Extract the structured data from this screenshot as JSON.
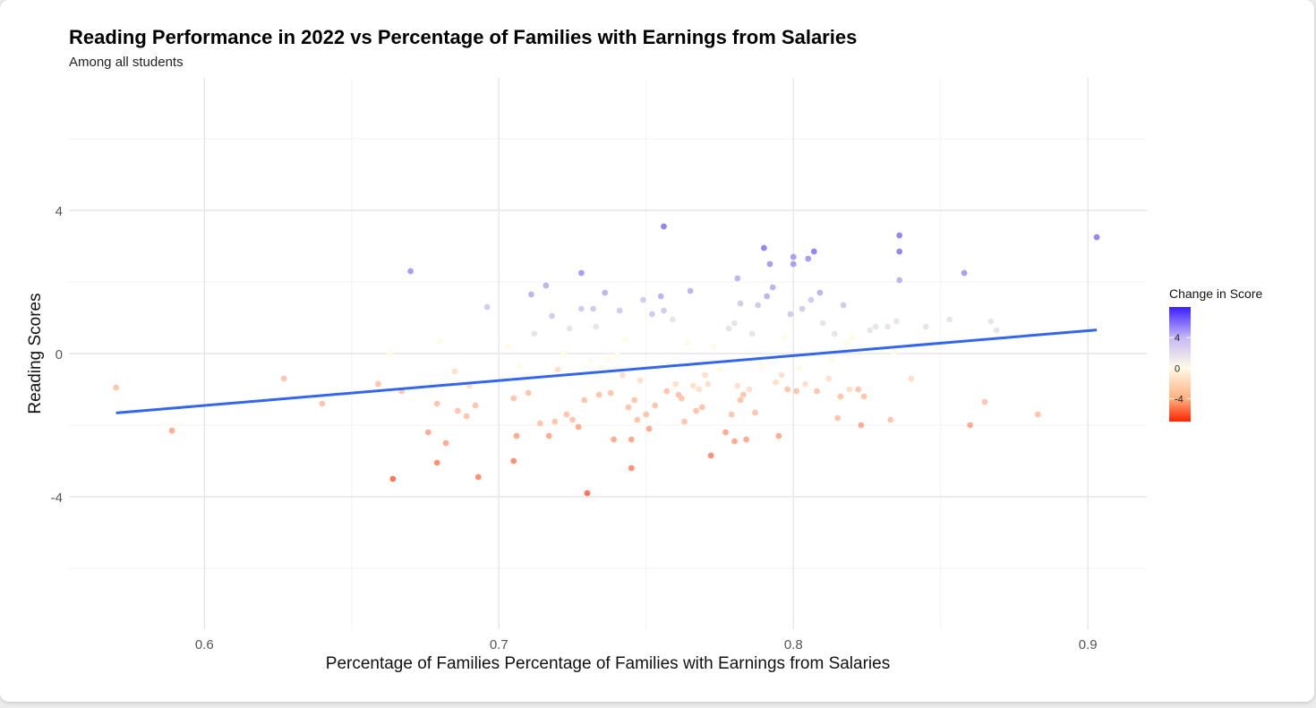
{
  "chart_data": {
    "type": "scatter",
    "title": "Reading Performance in 2022 vs Percentage of Families with Earnings from Salaries",
    "subtitle": "Among all students",
    "xlabel": "Percentage of Families Percentage of Families with Earnings from Salaries",
    "ylabel": "Reading Scores",
    "xlim": [
      0.554,
      0.92
    ],
    "ylim": [
      -7.7,
      7.7
    ],
    "x_ticks": [
      0.6,
      0.7,
      0.8,
      0.9
    ],
    "x_tick_labels": [
      "0.6",
      "0.7",
      "0.8",
      "0.9"
    ],
    "y_ticks": [
      -4,
      0,
      4
    ],
    "y_tick_labels": [
      "-4",
      "0",
      "4"
    ],
    "grid": true,
    "legend": {
      "title": "Change in Score",
      "position": "right",
      "range": [
        -7,
        8
      ],
      "tick_values": [
        4,
        0,
        -4
      ],
      "tick_labels": [
        "4",
        "0",
        "-4"
      ],
      "colors": {
        "low": "#ff2200",
        "mid": "#fffbe6",
        "high": "#3a1fff"
      }
    },
    "trend_line": {
      "x": [
        0.57,
        0.903
      ],
      "y": [
        -1.66,
        0.66
      ],
      "color": "#3366ee"
    },
    "points": [
      [
        0.57,
        -0.95,
        -2
      ],
      [
        0.589,
        -2.15,
        -3
      ],
      [
        0.627,
        -0.7,
        -2
      ],
      [
        0.64,
        -1.4,
        -2
      ],
      [
        0.659,
        -0.85,
        -2
      ],
      [
        0.664,
        -3.5,
        -5
      ],
      [
        0.667,
        -1.05,
        -2
      ],
      [
        0.67,
        2.3,
        4
      ],
      [
        0.663,
        0.0,
        0
      ],
      [
        0.676,
        -2.2,
        -3
      ],
      [
        0.679,
        -3.05,
        -4
      ],
      [
        0.679,
        -1.4,
        -2
      ],
      [
        0.682,
        -2.5,
        -3
      ],
      [
        0.686,
        -1.6,
        -2
      ],
      [
        0.689,
        -1.75,
        -2
      ],
      [
        0.692,
        -1.45,
        -2
      ],
      [
        0.693,
        -3.45,
        -4
      ],
      [
        0.69,
        -0.9,
        -1
      ],
      [
        0.685,
        -0.5,
        -1
      ],
      [
        0.68,
        0.35,
        0
      ],
      [
        0.696,
        1.3,
        2
      ],
      [
        0.703,
        0.2,
        0
      ],
      [
        0.705,
        -1.25,
        -2
      ],
      [
        0.705,
        -3.0,
        -4
      ],
      [
        0.706,
        -2.3,
        -3
      ],
      [
        0.707,
        -0.35,
        0
      ],
      [
        0.71,
        -1.1,
        -2
      ],
      [
        0.711,
        1.65,
        3
      ],
      [
        0.712,
        0.55,
        1
      ],
      [
        0.714,
        -1.95,
        -2
      ],
      [
        0.716,
        1.9,
        3
      ],
      [
        0.717,
        -2.3,
        -3
      ],
      [
        0.718,
        1.05,
        2
      ],
      [
        0.719,
        -1.9,
        -2
      ],
      [
        0.72,
        -0.45,
        -1
      ],
      [
        0.722,
        0.0,
        0
      ],
      [
        0.723,
        -1.7,
        -2
      ],
      [
        0.724,
        0.7,
        1
      ],
      [
        0.725,
        -1.85,
        -2
      ],
      [
        0.727,
        -2.05,
        -3
      ],
      [
        0.728,
        1.25,
        2
      ],
      [
        0.728,
        2.25,
        4
      ],
      [
        0.729,
        -1.3,
        -2
      ],
      [
        0.73,
        -3.9,
        -5
      ],
      [
        0.731,
        -0.2,
        0
      ],
      [
        0.732,
        1.25,
        2
      ],
      [
        0.733,
        0.75,
        1
      ],
      [
        0.734,
        -1.15,
        -2
      ],
      [
        0.735,
        -0.4,
        0
      ],
      [
        0.736,
        1.7,
        3
      ],
      [
        0.737,
        -0.15,
        0
      ],
      [
        0.738,
        -1.1,
        -2
      ],
      [
        0.739,
        -2.4,
        -3
      ],
      [
        0.74,
        -0.05,
        0
      ],
      [
        0.741,
        1.2,
        2
      ],
      [
        0.742,
        -0.6,
        -1
      ],
      [
        0.743,
        0.4,
        0
      ],
      [
        0.744,
        -1.5,
        -2
      ],
      [
        0.745,
        -3.2,
        -4
      ],
      [
        0.745,
        -2.4,
        -3
      ],
      [
        0.746,
        -1.3,
        -2
      ],
      [
        0.747,
        -1.85,
        -2
      ],
      [
        0.748,
        -0.75,
        -1
      ],
      [
        0.749,
        1.5,
        2
      ],
      [
        0.75,
        -1.7,
        -2
      ],
      [
        0.751,
        -2.1,
        -3
      ],
      [
        0.752,
        1.1,
        2
      ],
      [
        0.753,
        -1.45,
        -2
      ],
      [
        0.754,
        -0.4,
        0
      ],
      [
        0.755,
        1.6,
        3
      ],
      [
        0.756,
        3.55,
        5
      ],
      [
        0.756,
        1.2,
        2
      ],
      [
        0.757,
        -1.05,
        -2
      ],
      [
        0.758,
        -0.3,
        0
      ],
      [
        0.759,
        0.95,
        1
      ],
      [
        0.76,
        -0.85,
        -1
      ],
      [
        0.761,
        -1.15,
        -2
      ],
      [
        0.762,
        -1.25,
        -2
      ],
      [
        0.763,
        -1.9,
        -2
      ],
      [
        0.764,
        0.3,
        0
      ],
      [
        0.765,
        1.75,
        3
      ],
      [
        0.766,
        -0.9,
        -1
      ],
      [
        0.767,
        -1.6,
        -2
      ],
      [
        0.768,
        -1.0,
        -1
      ],
      [
        0.769,
        -1.5,
        -2
      ],
      [
        0.77,
        -0.6,
        -1
      ],
      [
        0.771,
        -0.85,
        -1
      ],
      [
        0.772,
        -2.85,
        -4
      ],
      [
        0.773,
        0.2,
        0
      ],
      [
        0.775,
        -0.45,
        0
      ],
      [
        0.777,
        -2.2,
        -3
      ],
      [
        0.778,
        0.7,
        1
      ],
      [
        0.779,
        -1.7,
        -2
      ],
      [
        0.78,
        -2.45,
        -3
      ],
      [
        0.78,
        0.85,
        1
      ],
      [
        0.781,
        2.1,
        3
      ],
      [
        0.781,
        -0.9,
        -1
      ],
      [
        0.782,
        -1.3,
        -2
      ],
      [
        0.782,
        1.4,
        2
      ],
      [
        0.783,
        -1.15,
        -2
      ],
      [
        0.784,
        -2.4,
        -3
      ],
      [
        0.785,
        -1.0,
        -1
      ],
      [
        0.786,
        0.55,
        1
      ],
      [
        0.787,
        -1.65,
        -2
      ],
      [
        0.788,
        1.35,
        2
      ],
      [
        0.789,
        -0.35,
        0
      ],
      [
        0.79,
        2.95,
        5
      ],
      [
        0.791,
        1.6,
        3
      ],
      [
        0.792,
        2.5,
        4
      ],
      [
        0.793,
        1.85,
        3
      ],
      [
        0.794,
        -0.8,
        -1
      ],
      [
        0.795,
        -2.3,
        -3
      ],
      [
        0.796,
        -0.6,
        -1
      ],
      [
        0.797,
        0.45,
        0
      ],
      [
        0.798,
        -1.0,
        -2
      ],
      [
        0.799,
        1.1,
        2
      ],
      [
        0.8,
        2.7,
        4
      ],
      [
        0.8,
        2.5,
        4
      ],
      [
        0.801,
        -1.05,
        -2
      ],
      [
        0.802,
        -0.4,
        0
      ],
      [
        0.803,
        1.25,
        2
      ],
      [
        0.804,
        -0.85,
        -1
      ],
      [
        0.805,
        2.65,
        4
      ],
      [
        0.806,
        1.5,
        2
      ],
      [
        0.807,
        2.85,
        5
      ],
      [
        0.808,
        -1.05,
        -2
      ],
      [
        0.809,
        1.7,
        3
      ],
      [
        0.81,
        0.85,
        1
      ],
      [
        0.812,
        -0.7,
        -1
      ],
      [
        0.813,
        -0.15,
        0
      ],
      [
        0.814,
        0.55,
        1
      ],
      [
        0.815,
        -1.8,
        -2
      ],
      [
        0.816,
        -1.2,
        -2
      ],
      [
        0.817,
        1.35,
        2
      ],
      [
        0.818,
        0.3,
        0
      ],
      [
        0.819,
        -1.0,
        -1
      ],
      [
        0.82,
        0.45,
        0
      ],
      [
        0.822,
        -1.0,
        -2
      ],
      [
        0.823,
        -2.0,
        -3
      ],
      [
        0.824,
        -1.2,
        -2
      ],
      [
        0.825,
        0.1,
        0
      ],
      [
        0.826,
        0.65,
        1
      ],
      [
        0.828,
        0.75,
        1
      ],
      [
        0.83,
        0.1,
        0
      ],
      [
        0.832,
        0.75,
        1
      ],
      [
        0.833,
        -1.85,
        -2
      ],
      [
        0.834,
        0.05,
        0
      ],
      [
        0.835,
        0.9,
        1
      ],
      [
        0.836,
        3.3,
        5
      ],
      [
        0.836,
        2.85,
        5
      ],
      [
        0.836,
        2.05,
        3
      ],
      [
        0.84,
        -0.7,
        -1
      ],
      [
        0.845,
        0.75,
        1
      ],
      [
        0.853,
        0.95,
        1
      ],
      [
        0.858,
        2.25,
        4
      ],
      [
        0.86,
        -2.0,
        -3
      ],
      [
        0.865,
        -1.35,
        -2
      ],
      [
        0.867,
        0.9,
        1
      ],
      [
        0.869,
        0.65,
        1
      ],
      [
        0.883,
        -1.7,
        -2
      ],
      [
        0.903,
        3.25,
        5
      ]
    ]
  }
}
